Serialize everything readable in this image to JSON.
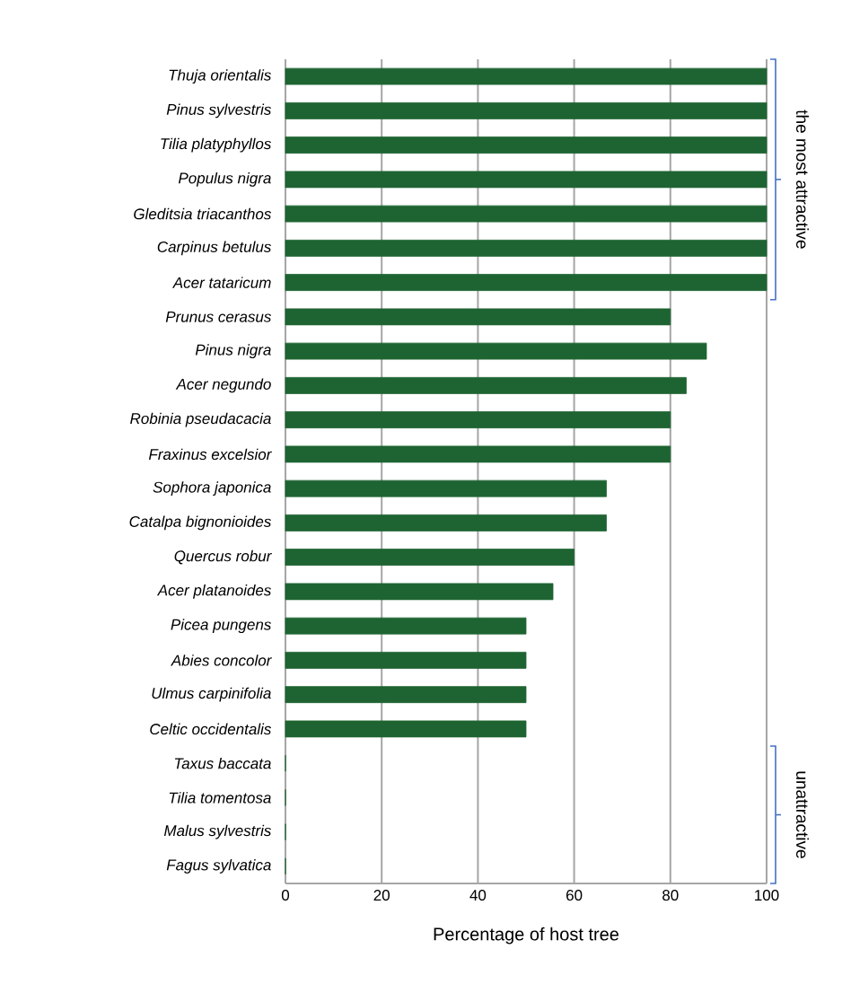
{
  "chart_data": {
    "type": "bar",
    "orientation": "horizontal",
    "xlabel": "Percentage of host tree",
    "categories": [
      "Thuja orientalis",
      "Pinus sylvestris",
      "Tilia platyphyllos",
      "Populus nigra",
      "Gleditsia triacanthos",
      "Carpinus betulus",
      "Acer tataricum",
      "Prunus cerasus",
      "Pinus nigra",
      "Acer negundo",
      "Robinia pseudacacia",
      "Fraxinus excelsior",
      "Sophora japonica",
      "Catalpa bignonioides",
      "Quercus robur",
      "Acer platanoides",
      "Picea pungens",
      "Abies concolor",
      "Ulmus carpinifolia",
      "Celtic occidentalis",
      "Taxus baccata",
      "Tilia tomentosa",
      "Malus sylvestris",
      "Fagus sylvatica"
    ],
    "values": [
      100,
      100,
      100,
      100,
      100,
      100,
      100,
      80,
      87.5,
      83.3,
      80,
      80,
      66.7,
      66.7,
      60,
      55.6,
      50,
      50,
      50,
      50,
      0,
      0,
      0,
      0
    ],
    "color": "#1e6432",
    "xlim": [
      0,
      100
    ],
    "xticks": [
      0,
      20,
      40,
      60,
      80,
      100
    ],
    "grid": "x",
    "annotations": [
      "the most attractive",
      "unattractive"
    ]
  }
}
